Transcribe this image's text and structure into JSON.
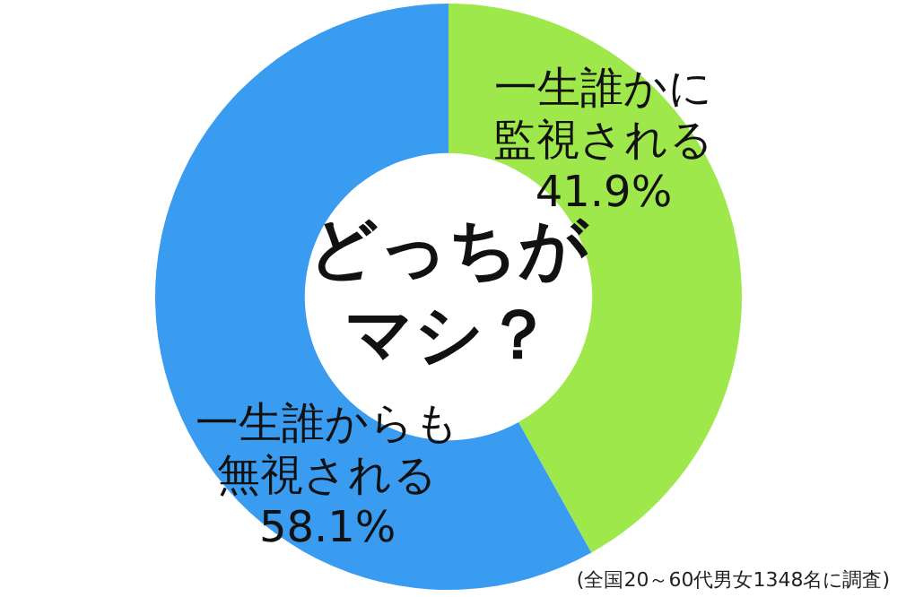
{
  "chart_data": {
    "type": "donut",
    "title": "どっちがマシ？",
    "categories": [
      "一生誰かに監視される",
      "一生誰からも無視される"
    ],
    "values": [
      41.9,
      58.1
    ],
    "colors": [
      "#9ee84c",
      "#3a9cf0"
    ],
    "value_labels": [
      "41.9%",
      "58.1%"
    ],
    "legend": false,
    "annotations": [
      "(全国20～60代男女1348名に調査)"
    ]
  }
}
